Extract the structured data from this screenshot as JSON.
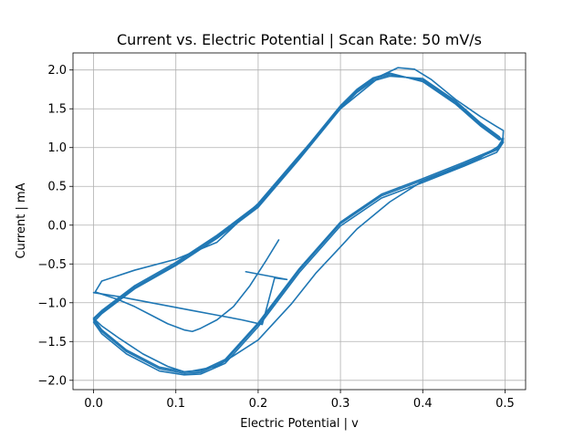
{
  "chart_data": {
    "type": "line",
    "title": "Current vs. Electric Potential | Scan Rate: 50 mV/s",
    "xlabel": "Electric Potential | v",
    "ylabel": "Current | mA",
    "xlim": [
      -0.025,
      0.525
    ],
    "ylim": [
      -2.12,
      2.22
    ],
    "xticks": [
      0.0,
      0.1,
      0.2,
      0.3,
      0.4,
      0.5
    ],
    "xtick_labels": [
      "0.0",
      "0.1",
      "0.2",
      "0.3",
      "0.4",
      "0.5"
    ],
    "yticks": [
      -2.0,
      -1.5,
      -1.0,
      -0.5,
      0.0,
      0.5,
      1.0,
      1.5,
      2.0
    ],
    "ytick_labels": [
      "−2.0",
      "−1.5",
      "−1.0",
      "−0.5",
      "0.0",
      "0.5",
      "1.0",
      "1.5",
      "2.0"
    ],
    "grid": true,
    "color": "#1f77b4",
    "series": [
      {
        "x": [
          0.225,
          0.21,
          0.19,
          0.17,
          0.15,
          0.13,
          0.12,
          0.11,
          0.09,
          0.07,
          0.05,
          0.03,
          0.01,
          0.002,
          0.01,
          0.05,
          0.1,
          0.15,
          0.2,
          0.25,
          0.3,
          0.35,
          0.37,
          0.39,
          0.41,
          0.44,
          0.47,
          0.49,
          0.498,
          0.497,
          0.47,
          0.44,
          0.4,
          0.36,
          0.32,
          0.3,
          0.27,
          0.24,
          0.2,
          0.15,
          0.12,
          0.11,
          0.09,
          0.06,
          0.03,
          0.01,
          0.0
        ],
        "y": [
          -0.19,
          -0.45,
          -0.78,
          -1.05,
          -1.22,
          -1.33,
          -1.37,
          -1.35,
          -1.27,
          -1.16,
          -1.05,
          -0.96,
          -0.89,
          -0.86,
          -0.72,
          -0.58,
          -0.44,
          -0.22,
          0.28,
          0.9,
          1.5,
          1.93,
          2.03,
          2.01,
          1.88,
          1.62,
          1.4,
          1.27,
          1.22,
          1.05,
          0.87,
          0.73,
          0.57,
          0.3,
          -0.05,
          -0.28,
          -0.62,
          -1.02,
          -1.48,
          -1.82,
          -1.88,
          -1.89,
          -1.82,
          -1.66,
          -1.45,
          -1.3,
          -1.2
        ]
      },
      {
        "x": [
          0.0,
          0.01,
          0.04,
          0.08,
          0.11,
          0.13,
          0.16,
          0.2,
          0.25,
          0.3,
          0.35,
          0.4,
          0.45,
          0.49,
          0.498,
          0.493,
          0.47,
          0.44,
          0.4,
          0.36,
          0.34,
          0.32,
          0.3,
          0.25,
          0.2,
          0.15,
          0.1,
          0.05,
          0.01,
          0.0
        ],
        "y": [
          -1.22,
          -1.37,
          -1.63,
          -1.85,
          -1.91,
          -1.9,
          -1.75,
          -1.28,
          -0.58,
          0.02,
          0.38,
          0.58,
          0.79,
          0.97,
          1.1,
          1.12,
          1.3,
          1.58,
          1.87,
          1.94,
          1.88,
          1.73,
          1.52,
          0.87,
          0.25,
          -0.15,
          -0.5,
          -0.8,
          -1.12,
          -1.22
        ]
      },
      {
        "x": [
          0.0,
          0.01,
          0.04,
          0.08,
          0.11,
          0.13,
          0.16,
          0.2,
          0.25,
          0.3,
          0.35,
          0.4,
          0.45,
          0.49,
          0.498,
          0.493,
          0.47,
          0.44,
          0.4,
          0.36,
          0.34,
          0.32,
          0.3,
          0.25,
          0.2,
          0.15,
          0.1,
          0.05,
          0.01,
          0.0
        ],
        "y": [
          -1.25,
          -1.4,
          -1.66,
          -1.88,
          -1.93,
          -1.92,
          -1.78,
          -1.31,
          -0.61,
          -0.01,
          0.35,
          0.55,
          0.76,
          0.94,
          1.07,
          1.14,
          1.32,
          1.6,
          1.89,
          1.92,
          1.86,
          1.71,
          1.5,
          0.85,
          0.23,
          -0.17,
          -0.52,
          -0.82,
          -1.14,
          -1.25
        ]
      },
      {
        "x": [
          0.0,
          0.01,
          0.04,
          0.08,
          0.11,
          0.13,
          0.16,
          0.2,
          0.25,
          0.3,
          0.35,
          0.4,
          0.45,
          0.49,
          0.498,
          0.493,
          0.47,
          0.44,
          0.4,
          0.36,
          0.34,
          0.32,
          0.3,
          0.25,
          0.2,
          0.15,
          0.1,
          0.05,
          0.01,
          0.0
        ],
        "y": [
          -1.2,
          -1.35,
          -1.61,
          -1.83,
          -1.89,
          -1.88,
          -1.73,
          -1.26,
          -0.56,
          0.04,
          0.4,
          0.6,
          0.81,
          0.99,
          1.12,
          1.1,
          1.28,
          1.56,
          1.85,
          1.96,
          1.9,
          1.75,
          1.54,
          0.89,
          0.27,
          -0.13,
          -0.48,
          -0.78,
          -1.1,
          -1.2
        ]
      },
      {
        "x": [
          0.0,
          0.03,
          0.06,
          0.09,
          0.12,
          0.15,
          0.18,
          0.205,
          0.22,
          0.235,
          0.21,
          0.185
        ],
        "y": [
          -0.87,
          -0.92,
          -0.98,
          -1.04,
          -1.1,
          -1.16,
          -1.22,
          -1.28,
          -0.68,
          -0.7,
          -0.65,
          -0.6
        ]
      }
    ]
  }
}
